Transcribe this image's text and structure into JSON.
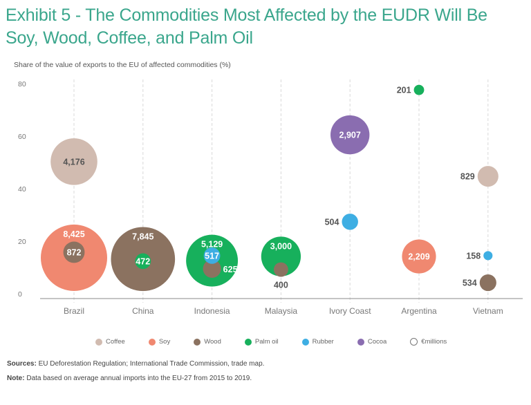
{
  "title": "Exhibit 5 - The Commodities Most Affected by the EUDR Will Be Soy, Wood, Coffee, and Palm Oil",
  "footer": {
    "sources_label": "Sources:",
    "sources_text": " EU Deforestation Regulation; International Trade Commission, trade map.",
    "note_label": "Note:",
    "note_text": " Data based on average annual imports into the EU-27 from 2015 to 2019."
  },
  "colors": {
    "Coffee": "#d1bbb0",
    "Soy": "#f08870",
    "Wood": "#8b7260",
    "Palm oil": "#17b05c",
    "Rubber": "#3eaee3",
    "Cocoa": "#8a6db0",
    "title": "#3aa68c"
  },
  "legend": [
    {
      "label": "Coffee",
      "type": "filled"
    },
    {
      "label": "Soy",
      "type": "filled"
    },
    {
      "label": "Wood",
      "type": "filled"
    },
    {
      "label": "Palm oil",
      "type": "filled"
    },
    {
      "label": "Rubber",
      "type": "filled"
    },
    {
      "label": "Cocoa",
      "type": "filled"
    },
    {
      "label": "€millions",
      "type": "outline"
    }
  ],
  "chart_data": {
    "type": "scatter",
    "subtype": "bubble",
    "title": "Exhibit 5 - The Commodities Most Affected by the EUDR Will Be Soy, Wood, Coffee, and Palm Oil",
    "ylabel": "Share of the value of exports to the EU of affected commodities (%)",
    "xlabel": "",
    "categories": [
      "Brazil",
      "China",
      "Indonesia",
      "Malaysia",
      "Ivory Coast",
      "Argentina",
      "Vietnam"
    ],
    "yticks": [
      0,
      20,
      40,
      60,
      80
    ],
    "ylim": [
      0,
      80
    ],
    "size_unit": "€millions",
    "grid": "vertical dashed",
    "legend_position": "bottom",
    "points": [
      {
        "country": "Brazil",
        "commodity": "Coffee",
        "share": 50.3,
        "value_eur_m": 4176,
        "label": "4,176",
        "label_pos": "center",
        "label_color": "dark"
      },
      {
        "country": "Brazil",
        "commodity": "Soy",
        "share": 13.7,
        "value_eur_m": 8425,
        "label": "8,425",
        "label_pos": "top-inside",
        "label_color": "light"
      },
      {
        "country": "Brazil",
        "commodity": "Wood",
        "share": 15.8,
        "value_eur_m": 872,
        "label": "872",
        "label_pos": "center",
        "label_color": "light"
      },
      {
        "country": "China",
        "commodity": "Wood",
        "share": 13.2,
        "value_eur_m": 7845,
        "label": "7,845",
        "label_pos": "top-inside",
        "label_color": "light"
      },
      {
        "country": "China",
        "commodity": "Palm oil",
        "share": 12.4,
        "value_eur_m": 472,
        "label": "472",
        "label_pos": "center",
        "label_color": "light"
      },
      {
        "country": "Indonesia",
        "commodity": "Palm oil",
        "share": 12.6,
        "value_eur_m": 5129,
        "label": "5,129",
        "label_pos": "top-inside",
        "label_color": "light"
      },
      {
        "country": "Indonesia",
        "commodity": "Wood",
        "share": 9.5,
        "value_eur_m": 625,
        "label": "625",
        "label_pos": "right",
        "label_color": "light"
      },
      {
        "country": "Indonesia",
        "commodity": "Rubber",
        "share": 14.5,
        "value_eur_m": 517,
        "label": "517",
        "label_pos": "center",
        "label_color": "light"
      },
      {
        "country": "Malaysia",
        "commodity": "Palm oil",
        "share": 14.2,
        "value_eur_m": 3000,
        "label": "3,000",
        "label_pos": "top-inside",
        "label_color": "light"
      },
      {
        "country": "Malaysia",
        "commodity": "Wood",
        "share": 9.2,
        "value_eur_m": 400,
        "label": "400",
        "label_pos": "below",
        "label_color": "dark"
      },
      {
        "country": "Ivory Coast",
        "commodity": "Cocoa",
        "share": 60.5,
        "value_eur_m": 2907,
        "label": "2,907",
        "label_pos": "center",
        "label_color": "light"
      },
      {
        "country": "Ivory Coast",
        "commodity": "Rubber",
        "share": 27.4,
        "value_eur_m": 504,
        "label": "504",
        "label_pos": "left",
        "label_color": "dark"
      },
      {
        "country": "Argentina",
        "commodity": "Palm oil",
        "share": 77.6,
        "value_eur_m": 201,
        "label": "201",
        "label_pos": "left",
        "label_color": "dark"
      },
      {
        "country": "Argentina",
        "commodity": "Soy",
        "share": 14.2,
        "value_eur_m": 2209,
        "label": "2,209",
        "label_pos": "center",
        "label_color": "light"
      },
      {
        "country": "Vietnam",
        "commodity": "Coffee",
        "share": 44.7,
        "value_eur_m": 829,
        "label": "829",
        "label_pos": "left",
        "label_color": "dark"
      },
      {
        "country": "Vietnam",
        "commodity": "Rubber",
        "share": 14.5,
        "value_eur_m": 158,
        "label": "158",
        "label_pos": "left",
        "label_color": "dark"
      },
      {
        "country": "Vietnam",
        "commodity": "Wood",
        "share": 4.2,
        "value_eur_m": 534,
        "label": "534",
        "label_pos": "left",
        "label_color": "dark"
      }
    ]
  }
}
